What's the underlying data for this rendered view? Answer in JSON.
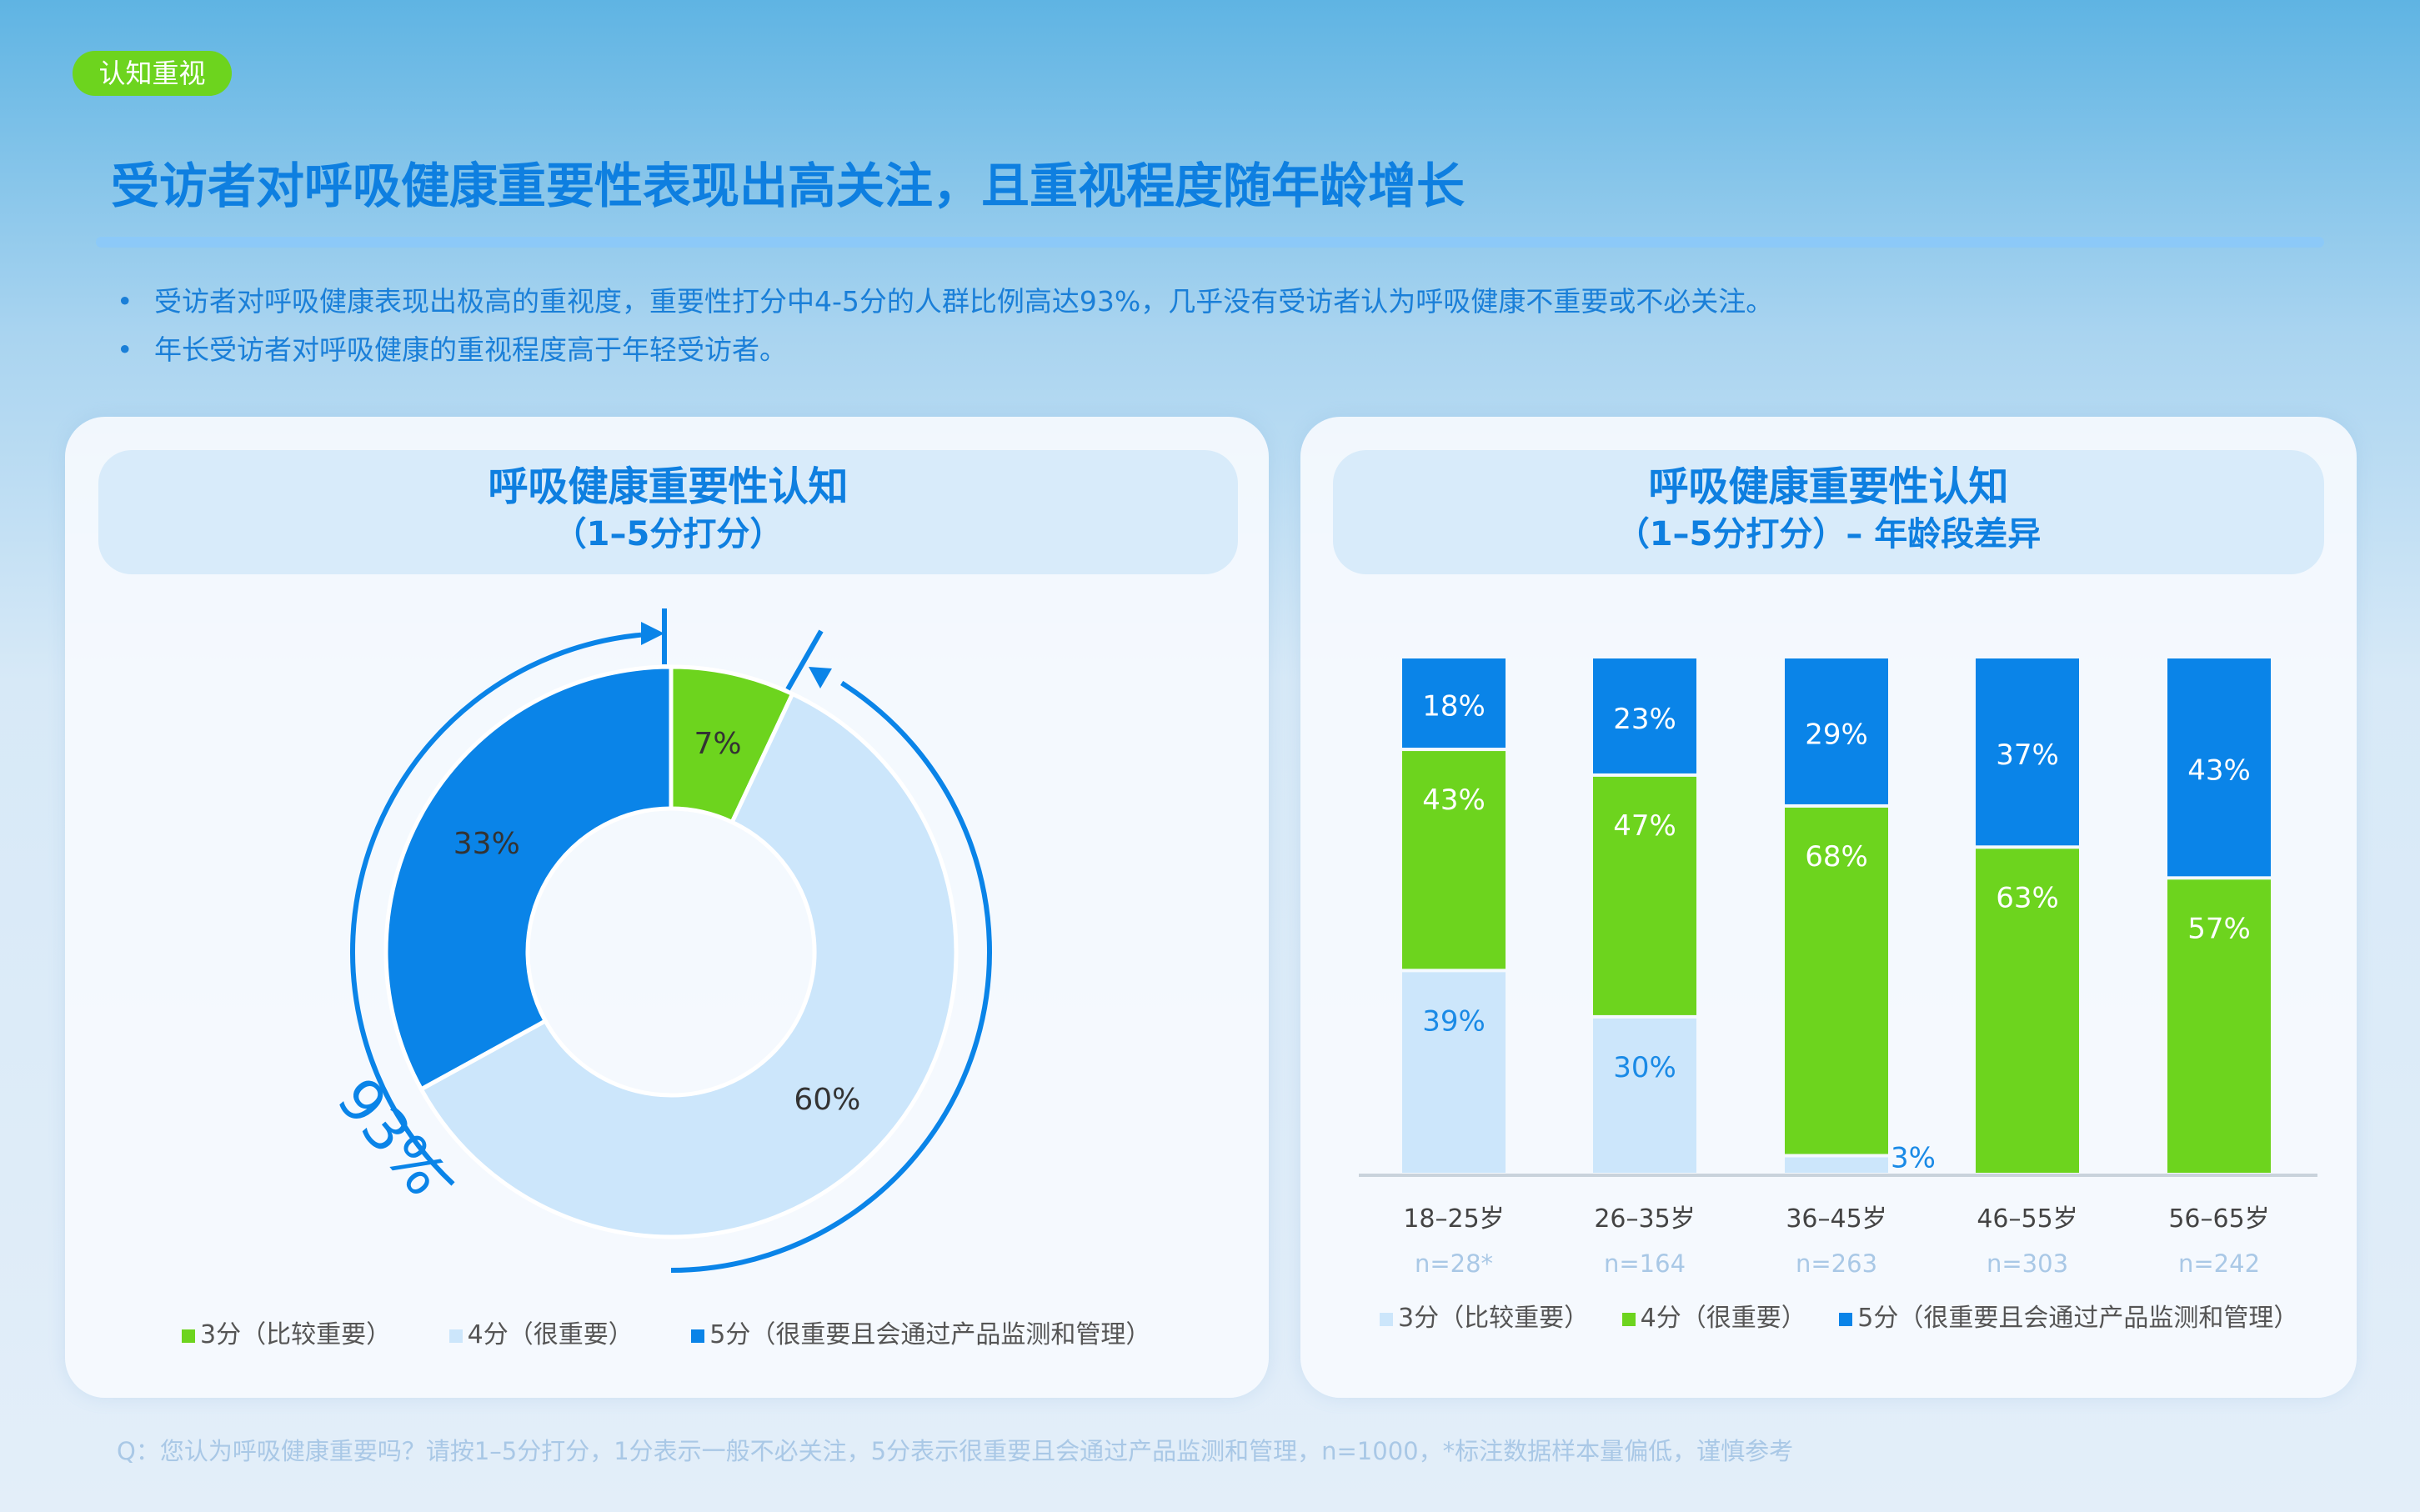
{
  "tag": "认知重视",
  "title": "受访者对呼吸健康重要性表现出高关注，且重视程度随年龄增长",
  "bullets": [
    "受访者对呼吸健康表现出极高的重视度，重要性打分中4-5分的人群比例高达93%，几乎没有受访者认为呼吸健康不重要或不必关注。",
    "年长受访者对呼吸健康的重视程度高于年轻受访者。"
  ],
  "colors": {
    "score3": "#cce6fb",
    "score4": "#6dd41e",
    "score5": "#0a84e8",
    "title": "#0e7fe0"
  },
  "chart_data": [
    {
      "type": "pie",
      "donut": true,
      "title": "呼吸健康重要性认知",
      "subtitle": "（1–5分打分）",
      "categories": [
        "3分（比较重要）",
        "4分（很重要）",
        "5分（很重要且会通过产品监测和管理）"
      ],
      "values": [
        7,
        60,
        33
      ],
      "labels": [
        "7%",
        "60%",
        "33%"
      ],
      "annotation": "93%",
      "legend": "bottom"
    },
    {
      "type": "bar",
      "stacked": true,
      "title": "呼吸健康重要性认知",
      "subtitle": "（1–5分打分）– 年龄段差异",
      "categories": [
        "18–25岁",
        "26–35岁",
        "36–45岁",
        "46–55岁",
        "56–65岁"
      ],
      "sample_sizes": [
        "n=28*",
        "n=164",
        "n=263",
        "n=303",
        "n=242"
      ],
      "series": [
        {
          "name": "3分（比较重要）",
          "values": [
            39,
            30,
            3,
            0,
            0
          ],
          "labels": [
            "39%",
            "30%",
            "3%",
            "",
            ""
          ]
        },
        {
          "name": "4分（很重要）",
          "values": [
            43,
            47,
            68,
            63,
            57
          ],
          "labels": [
            "43%",
            "47%",
            "68%",
            "63%",
            "57%"
          ]
        },
        {
          "name": "5分（很重要且会通过产品监测和管理）",
          "values": [
            18,
            23,
            29,
            37,
            43
          ],
          "labels": [
            "18%",
            "23%",
            "29%",
            "37%",
            "43%"
          ]
        }
      ],
      "ylim": [
        0,
        100
      ],
      "legend": "bottom"
    }
  ],
  "footnote": "Q：您认为呼吸健康重要吗？请按1–5分打分，1分表示一般不必关注，5分表示很重要且会通过产品监测和管理，n=1000，*标注数据样本量偏低，谨慎参考"
}
